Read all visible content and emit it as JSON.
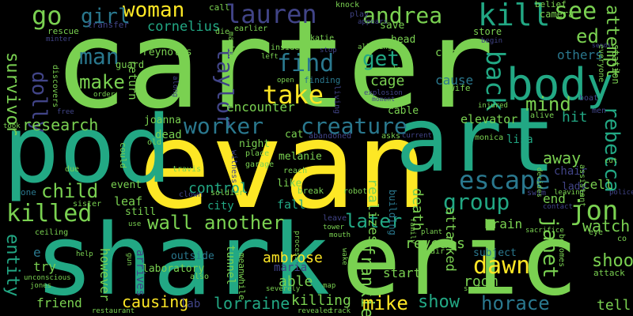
{
  "colors": {
    "background": "#000000",
    "c1": "#fde725",
    "c2": "#7ad151",
    "c3": "#22a884",
    "c4": "#2a788e",
    "c5": "#414487",
    "c6": "#440154"
  },
  "words": {
    "carter": "carter",
    "evan": "evan",
    "eric": "eric",
    "shark": "shark",
    "pod": "pod",
    "art": "art",
    "body": "body",
    "lauren": "lauren",
    "woman": "woman",
    "kill": "kill",
    "andrea": "andrea",
    "see": "see",
    "go": "go",
    "girl": "girl",
    "cornelius": "cornelius",
    "ed": "ed",
    "attempt": "attempt",
    "survivor": "survivor",
    "man": "man",
    "find": "find",
    "get": "get",
    "make": "make",
    "take": "take",
    "taylor": "taylor",
    "back": "back",
    "dolly": "dolly",
    "mind": "mind",
    "worker": "worker",
    "creature": "creature",
    "research": "research",
    "rebecca": "rebecca",
    "escape": "escape",
    "child": "child",
    "group": "group",
    "killed": "killed",
    "jon": "jon",
    "wall": "wall",
    "another": "another",
    "later": "later",
    "watch": "watch",
    "entity": "entity",
    "janet": "janet",
    "dawn": "dawn",
    "shoot": "shoot",
    "frankie": "frankie",
    "mike": "mike",
    "show": "show",
    "horace": "horace",
    "causing": "causing",
    "lorraine": "lorraine",
    "killing": "killing",
    "friend": "friend",
    "tell": "tell",
    "ambrose": "ambrose",
    "able": "able",
    "room": "room",
    "start": "start",
    "however": "however",
    "cage": "cage",
    "cause": "cause",
    "others": "others",
    "reveals": "reveals",
    "control": "control",
    "away": "away",
    "attacked": "attacked",
    "death": "death",
    "realizes": "realizes",
    "encounter": "encounter",
    "joanna": "joanna",
    "elevator": "elevator",
    "lisa": "lisa",
    "hit": "hit",
    "brain": "brain",
    "leaf": "leaf",
    "city": "city",
    "fall": "fall",
    "cell": "cell",
    "end": "end",
    "try": "try",
    "tunnel": "tunnel",
    "maria": "maria",
    "reynolds": "reynolds",
    "guard": "guard",
    "return": "return",
    "dead": "dead",
    "melanie": "melanie",
    "night": "night",
    "cat": "cat",
    "like": "like",
    "chair": "chair",
    "lady": "lady",
    "car": "car",
    "save": "save",
    "head": "head",
    "store": "store",
    "cable": "cable",
    "wife": "wife",
    "event": "event",
    "still": "still",
    "outside": "outside",
    "laboratory": "laboratory",
    "arrives": "arrives",
    "lab": "lab",
    "subject": "subject",
    "meanwhile": "meanwhile",
    "building": "building",
    "soldier": "soldier",
    "robot": "robot",
    "transfer": "transfer",
    "rescue": "rescue",
    "discovers": "discovers",
    "call": "call",
    "die": "die",
    "earlier": "earlier",
    "machine": "machine",
    "inside": "inside",
    "katie": "katie",
    "finding": "finding",
    "place": "place",
    "garage": "garage",
    "also": "also",
    "camera": "camera",
    "station": "station",
    "everyone": "everyone",
    "belief": "belief",
    "play": "play",
    "knock": "knock",
    "appears": "appears",
    "allowing": "allowing",
    "last": "last",
    "explosion": "explosion",
    "moment": "moment",
    "living": "living",
    "stop": "stop",
    "open": "open",
    "left": "left",
    "minter": "minter",
    "order": "order",
    "free": "free",
    "took": "took",
    "along": "along",
    "due": "due",
    "could": "could",
    "old": "old",
    "travis": "travis",
    "clown": "clown",
    "witness": "witness",
    "reach": "reach",
    "break": "break",
    "abandoned": "abandoned",
    "asks": "asks",
    "current": "current",
    "monica": "monica",
    "boat": "boat",
    "men": "men",
    "alive": "alive",
    "injured": "injured",
    "begin": "begin",
    "sends": "sends",
    "swim": "swim",
    "leaving": "leaving",
    "decides": "decides",
    "assistant": "assistant",
    "police": "police",
    "contact": "contact",
    "sacrifice": "sacrifice",
    "eye": "eye",
    "becomes": "becomes",
    "attack": "attack",
    "co": "co",
    "one": "one",
    "sister": "sister",
    "ceiling": "ceiling",
    "use": "use",
    "help": "help",
    "gun": "gun",
    "unconscious": "unconscious",
    "jones": "jones",
    "restaurant": "restaurant",
    "leave": "leave",
    "tower": "tower",
    "mouth": "mouth",
    "process": "process",
    "wake": "wake",
    "map": "map",
    "severely": "severely",
    "revealed": "revealed",
    "track": "track",
    "air": "air",
    "plant": "plant",
    "surface": "surface",
    "family": "family",
    "e": "e",
    "cut": "cut"
  }
}
